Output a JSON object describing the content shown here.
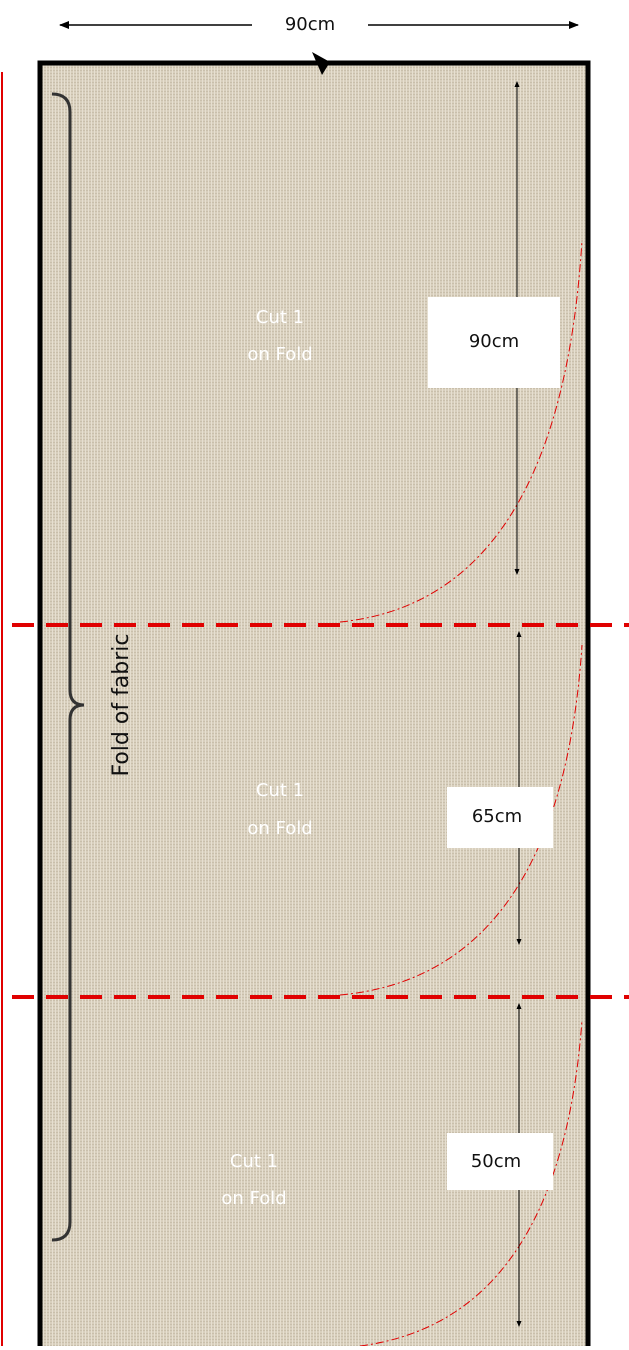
{
  "width_label": "90cm",
  "fold_label": "Fold of fabric",
  "pieces": [
    {
      "cut_line1": "Cut 1",
      "cut_line2": "on Fold",
      "length": "90cm"
    },
    {
      "cut_line1": "Cut 1",
      "cut_line2": "on Fold",
      "length": "65cm"
    },
    {
      "cut_line1": "Cut 1",
      "cut_line2": "on Fold",
      "length": "50cm"
    }
  ]
}
